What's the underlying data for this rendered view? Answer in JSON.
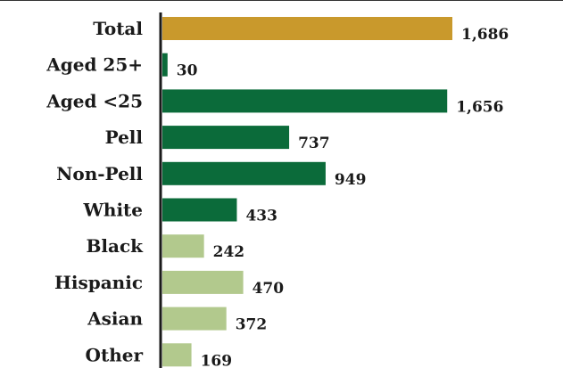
{
  "chart_data": {
    "type": "bar",
    "orientation": "horizontal",
    "categories": [
      "Total",
      "Aged 25+",
      "Aged <25",
      "Pell",
      "Non-Pell",
      "White",
      "Black",
      "Hispanic",
      "Asian",
      "Other"
    ],
    "values": [
      1686,
      30,
      1656,
      737,
      949,
      433,
      242,
      470,
      372,
      169
    ],
    "value_labels": [
      "1,686",
      "30",
      "1,656",
      "737",
      "949",
      "433",
      "242",
      "470",
      "372",
      "169"
    ],
    "bar_colors": [
      "#C9992C",
      "#0B6B3A",
      "#0B6B3A",
      "#0B6B3A",
      "#0B6B3A",
      "#0B6B3A",
      "#B2C98D",
      "#B2C98D",
      "#B2C98D",
      "#B2C98D"
    ],
    "title": "",
    "xlabel": "",
    "ylabel": "",
    "xlim": [
      0,
      1686
    ],
    "grid": false,
    "legend": "none"
  }
}
